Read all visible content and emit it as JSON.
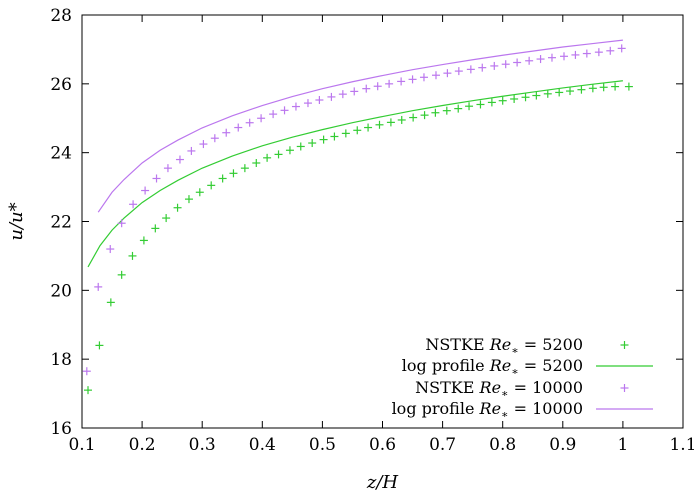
{
  "chart_data": {
    "type": "scatter",
    "xlabel": "z/H",
    "ylabel": "u/u*",
    "xlim": [
      0.1,
      1.1
    ],
    "ylim": [
      16,
      28
    ],
    "x_ticks": [
      "0.1",
      "0.2",
      "0.3",
      "0.4",
      "0.5",
      "0.6",
      "0.7",
      "0.8",
      "0.9",
      "1",
      "1.1"
    ],
    "y_ticks": [
      "16",
      "18",
      "20",
      "22",
      "24",
      "26",
      "28"
    ],
    "legend_position": "bottom-right",
    "series": [
      {
        "name": "NSTKE Re* = 5200",
        "legend_prefix": "NSTKE ",
        "legend_re": "Re",
        "legend_value": " = 5200",
        "kind": "points",
        "marker": "+",
        "color": "#33cc33",
        "x": [
          0.11,
          0.129,
          0.148,
          0.166,
          0.184,
          0.203,
          0.222,
          0.24,
          0.259,
          0.278,
          0.296,
          0.315,
          0.334,
          0.352,
          0.371,
          0.39,
          0.408,
          0.427,
          0.446,
          0.464,
          0.483,
          0.502,
          0.52,
          0.539,
          0.558,
          0.576,
          0.595,
          0.614,
          0.632,
          0.651,
          0.67,
          0.688,
          0.707,
          0.726,
          0.744,
          0.763,
          0.782,
          0.8,
          0.819,
          0.838,
          0.856,
          0.875,
          0.894,
          0.912,
          0.931,
          0.95,
          0.968,
          0.987,
          1.01
        ],
        "y": [
          17.1,
          18.4,
          19.65,
          20.45,
          21.0,
          21.45,
          21.8,
          22.1,
          22.4,
          22.65,
          22.85,
          23.05,
          23.25,
          23.4,
          23.55,
          23.7,
          23.85,
          23.95,
          24.07,
          24.18,
          24.28,
          24.38,
          24.47,
          24.56,
          24.65,
          24.73,
          24.81,
          24.88,
          24.95,
          25.02,
          25.09,
          25.16,
          25.22,
          25.28,
          25.35,
          25.4,
          25.46,
          25.51,
          25.56,
          25.61,
          25.66,
          25.71,
          25.75,
          25.79,
          25.83,
          25.87,
          25.9,
          25.92,
          25.92
        ]
      },
      {
        "name": "log profile Re* = 5200",
        "legend_prefix": "log profile ",
        "legend_re": "Re",
        "legend_value": " = 5200",
        "kind": "line",
        "color": "#33cc33",
        "x": [
          0.11,
          0.13,
          0.15,
          0.17,
          0.2,
          0.23,
          0.26,
          0.3,
          0.35,
          0.4,
          0.45,
          0.5,
          0.55,
          0.6,
          0.65,
          0.7,
          0.75,
          0.8,
          0.85,
          0.9,
          0.95,
          1.0
        ],
        "y": [
          20.68,
          21.3,
          21.75,
          22.1,
          22.55,
          22.9,
          23.2,
          23.55,
          23.9,
          24.2,
          24.45,
          24.67,
          24.87,
          25.05,
          25.22,
          25.37,
          25.51,
          25.64,
          25.76,
          25.88,
          25.99,
          26.09
        ]
      },
      {
        "name": "NSTKE Re* = 10000",
        "legend_prefix": "NSTKE ",
        "legend_re": "Re",
        "legend_value": " = 10000",
        "kind": "points",
        "marker": "+",
        "color": "#bb77ee",
        "x": [
          0.108,
          0.127,
          0.147,
          0.166,
          0.185,
          0.205,
          0.224,
          0.243,
          0.263,
          0.282,
          0.302,
          0.321,
          0.34,
          0.36,
          0.379,
          0.398,
          0.418,
          0.437,
          0.456,
          0.476,
          0.495,
          0.515,
          0.534,
          0.553,
          0.573,
          0.592,
          0.611,
          0.631,
          0.65,
          0.669,
          0.689,
          0.708,
          0.727,
          0.747,
          0.766,
          0.786,
          0.805,
          0.824,
          0.844,
          0.863,
          0.882,
          0.902,
          0.921,
          0.94,
          0.96,
          0.979,
          0.998
        ],
        "y": [
          17.65,
          20.1,
          21.2,
          21.95,
          22.5,
          22.9,
          23.25,
          23.55,
          23.8,
          24.05,
          24.25,
          24.42,
          24.58,
          24.73,
          24.87,
          25.0,
          25.12,
          25.23,
          25.34,
          25.44,
          25.53,
          25.62,
          25.7,
          25.78,
          25.86,
          25.93,
          26.0,
          26.07,
          26.13,
          26.19,
          26.25,
          26.31,
          26.37,
          26.42,
          26.47,
          26.52,
          26.57,
          26.62,
          26.67,
          26.72,
          26.76,
          26.8,
          26.84,
          26.88,
          26.92,
          26.96,
          27.03
        ]
      },
      {
        "name": "log profile Re* = 10000",
        "legend_prefix": "log profile ",
        "legend_re": "Re",
        "legend_value": " = 10000",
        "kind": "line",
        "color": "#bb77ee",
        "x": [
          0.127,
          0.15,
          0.17,
          0.2,
          0.23,
          0.26,
          0.3,
          0.35,
          0.4,
          0.45,
          0.5,
          0.55,
          0.6,
          0.65,
          0.7,
          0.75,
          0.8,
          0.85,
          0.9,
          0.95,
          1.0
        ],
        "y": [
          22.27,
          22.85,
          23.22,
          23.7,
          24.07,
          24.37,
          24.72,
          25.07,
          25.37,
          25.63,
          25.86,
          26.06,
          26.24,
          26.41,
          26.56,
          26.7,
          26.83,
          26.95,
          27.07,
          27.17,
          27.27
        ]
      }
    ]
  }
}
